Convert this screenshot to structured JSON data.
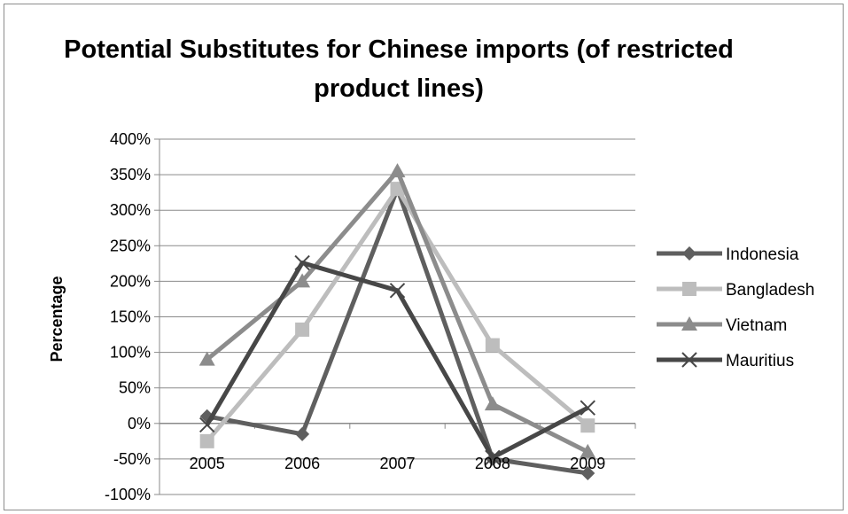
{
  "chart_data": {
    "type": "line",
    "title": "Potential Substitutes for Chinese imports (of restricted product lines)",
    "xlabel": "",
    "ylabel": "Percentage",
    "categories": [
      "2005",
      "2006",
      "2007",
      "2008",
      "2009"
    ],
    "ylim": [
      -100,
      400
    ],
    "ytick_step": 50,
    "ytick_labels": [
      "400%",
      "350%",
      "300%",
      "250%",
      "200%",
      "150%",
      "100%",
      "50%",
      "0%",
      "-50%",
      "-100%"
    ],
    "grid": true,
    "legend_position": "right",
    "series": [
      {
        "name": "Indonesia",
        "values": [
          10,
          -15,
          330,
          -50,
          -70
        ],
        "color": "#5f5f5f",
        "marker": "diamond"
      },
      {
        "name": "Bangladesh",
        "values": [
          -25,
          132,
          330,
          110,
          -3
        ],
        "color": "#bdbdbd",
        "marker": "square"
      },
      {
        "name": "Vietnam",
        "values": [
          90,
          200,
          355,
          27,
          -40
        ],
        "color": "#8c8c8c",
        "marker": "triangle"
      },
      {
        "name": "Mauritius",
        "values": [
          -2,
          226,
          187,
          -48,
          22
        ],
        "color": "#474747",
        "marker": "x"
      }
    ]
  }
}
